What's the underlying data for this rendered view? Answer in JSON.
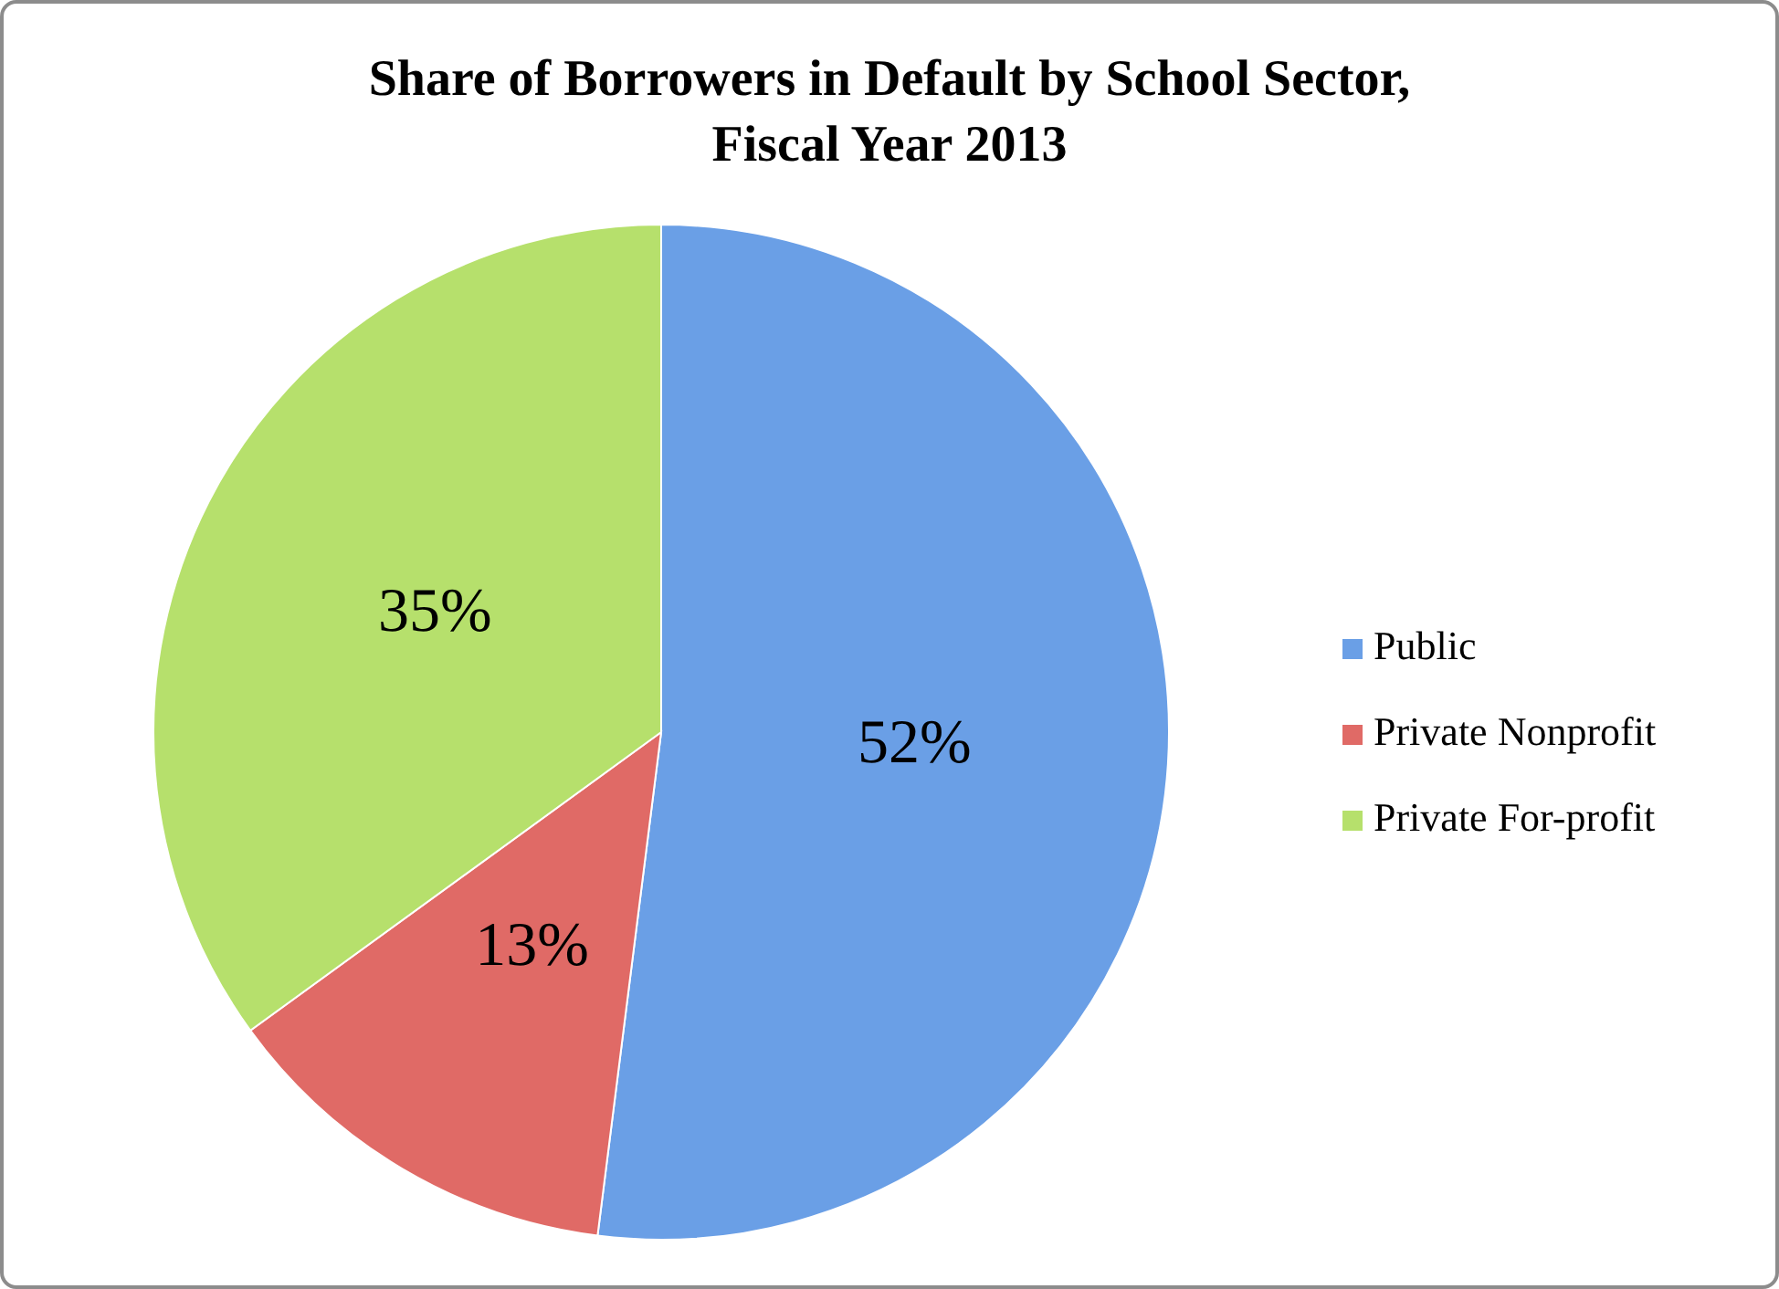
{
  "chart_data": {
    "type": "pie",
    "title": "Share of Borrowers in Default by School Sector,\nFiscal Year 2013",
    "categories": [
      "Public",
      "Private Nonprofit",
      "Private For-profit"
    ],
    "values": [
      52,
      13,
      35
    ],
    "value_labels": [
      "52%",
      "13%",
      "35%"
    ],
    "colors": [
      "#6a9fe6",
      "#e06a66",
      "#b6e06c"
    ],
    "legend": "right"
  }
}
